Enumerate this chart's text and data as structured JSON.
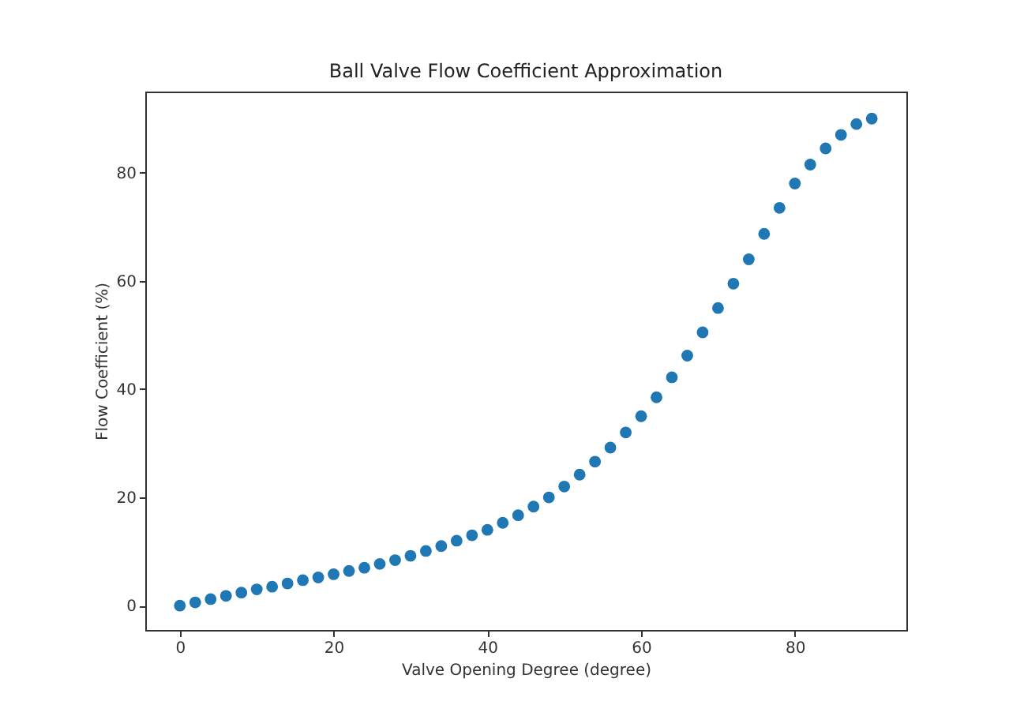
{
  "chart_data": {
    "type": "scatter",
    "title": "Ball Valve Flow Coefficient Approximation",
    "xlabel": "Valve Opening Degree (degree)",
    "ylabel": "Flow Coefficient (%)",
    "x": [
      0,
      2,
      4,
      6,
      8,
      10,
      12,
      14,
      16,
      18,
      20,
      22,
      24,
      26,
      28,
      30,
      32,
      34,
      36,
      38,
      40,
      42,
      44,
      46,
      48,
      50,
      52,
      54,
      56,
      58,
      60,
      62,
      64,
      66,
      68,
      70,
      72,
      74,
      76,
      78,
      80,
      82,
      84,
      86,
      88,
      90
    ],
    "series": [
      {
        "color": "#1f77b4",
        "values": [
          0,
          0.6,
          1.2,
          1.8,
          2.4,
          3.0,
          3.5,
          4.1,
          4.7,
          5.2,
          5.8,
          6.4,
          7.0,
          7.7,
          8.4,
          9.2,
          10.1,
          11.0,
          12.0,
          13.0,
          14.0,
          15.3,
          16.7,
          18.3,
          20.0,
          22.0,
          24.2,
          26.6,
          29.2,
          32.0,
          35.0,
          38.5,
          42.2,
          46.2,
          50.5,
          55.0,
          59.5,
          64.0,
          68.7,
          73.5,
          78.0,
          81.5,
          84.5,
          87.0,
          89.0,
          90.0
        ]
      }
    ],
    "xlim": [
      -4.5,
      94.5
    ],
    "ylim": [
      -4.5,
      95
    ],
    "xticks": [
      0,
      20,
      40,
      60,
      80
    ],
    "yticks": [
      0,
      20,
      40,
      60,
      80
    ],
    "grid": false,
    "marker": "circle"
  }
}
